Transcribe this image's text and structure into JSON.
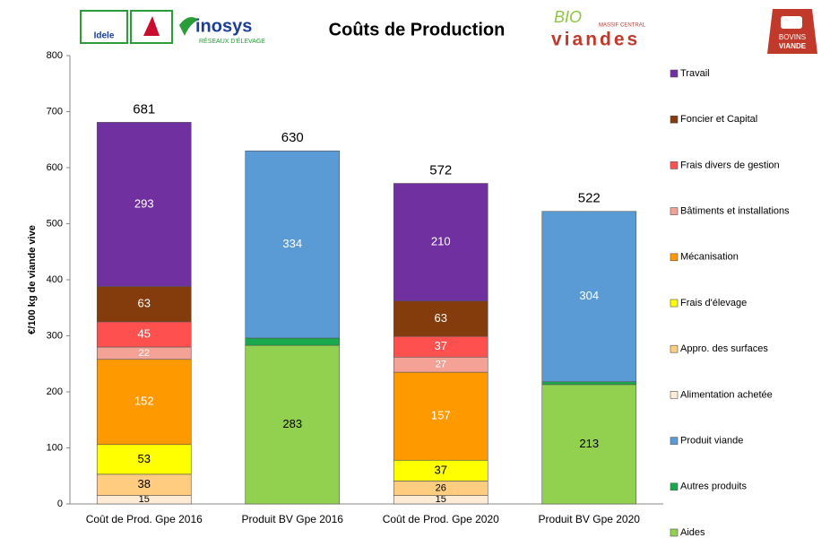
{
  "chart_data": {
    "type": "stacked-bar",
    "title": "Coûts de Production",
    "logos": {
      "idele": "Idele",
      "inosys": "inosys",
      "inosys_sub": "RÉSEAUX D'ÉLEVAGE",
      "bio": "BIO",
      "bio_sub": "MASSIF CENTRAL",
      "viandes": "viandes",
      "bovins": "BOVINS",
      "viande": "VIANDE"
    },
    "y_label": "€/100 kg de viande vive",
    "categories": [
      "Coût de Prod. Gpe 2016",
      "Produit BV Gpe 2016",
      "Coût de Prod. Gpe 2020",
      "Produit BV Gpe 2020"
    ],
    "totals": [
      681,
      630,
      572,
      522
    ],
    "ylim": [
      0,
      800
    ],
    "yticks": [
      0,
      100,
      200,
      300,
      400,
      500,
      600,
      700,
      800
    ],
    "series": [
      {
        "name": "Travail",
        "color": "#7030a0",
        "label_color": "#ffffff",
        "labels": true,
        "values": [
          293,
          null,
          210,
          null
        ]
      },
      {
        "name": "Foncier et Capital",
        "color": "#843c0c",
        "label_color": "#ffffff",
        "labels": true,
        "values": [
          63,
          null,
          63,
          null
        ]
      },
      {
        "name": "Frais divers de gestion",
        "color": "#ff5050",
        "label_color": "#ffffff",
        "labels": true,
        "values": [
          45,
          null,
          37,
          null
        ]
      },
      {
        "name": "Bâtiments et installations",
        "color": "#f4a296",
        "label_color": "#ffffff",
        "labels": true,
        "values": [
          22,
          null,
          27,
          null
        ]
      },
      {
        "name": "Mécanisation",
        "color": "#ff9900",
        "label_color": "#ffffff",
        "labels": true,
        "values": [
          152,
          null,
          157,
          null
        ]
      },
      {
        "name": "Frais d'élevage",
        "color": "#ffff00",
        "label_color": "#000000",
        "labels": true,
        "values": [
          53,
          null,
          37,
          null
        ]
      },
      {
        "name": "Appro. des surfaces",
        "color": "#ffcc80",
        "label_color": "#000000",
        "labels": true,
        "values": [
          38,
          null,
          26,
          null
        ]
      },
      {
        "name": "Alimentation achetée",
        "color": "#fdebd6",
        "label_color": "#000000",
        "labels": true,
        "values": [
          15,
          null,
          15,
          null
        ]
      },
      {
        "name": "Produit viande",
        "color": "#5b9bd5",
        "label_color": "#ffffff",
        "labels": true,
        "values": [
          null,
          334,
          null,
          304
        ]
      },
      {
        "name": "Autres produits",
        "color": "#1aa84c",
        "label_color": "#000000",
        "labels": false,
        "values": [
          null,
          13,
          null,
          5
        ]
      },
      {
        "name": "Aides",
        "color": "#92d050",
        "label_color": "#000000",
        "labels": true,
        "values": [
          null,
          283,
          null,
          213
        ]
      }
    ]
  }
}
